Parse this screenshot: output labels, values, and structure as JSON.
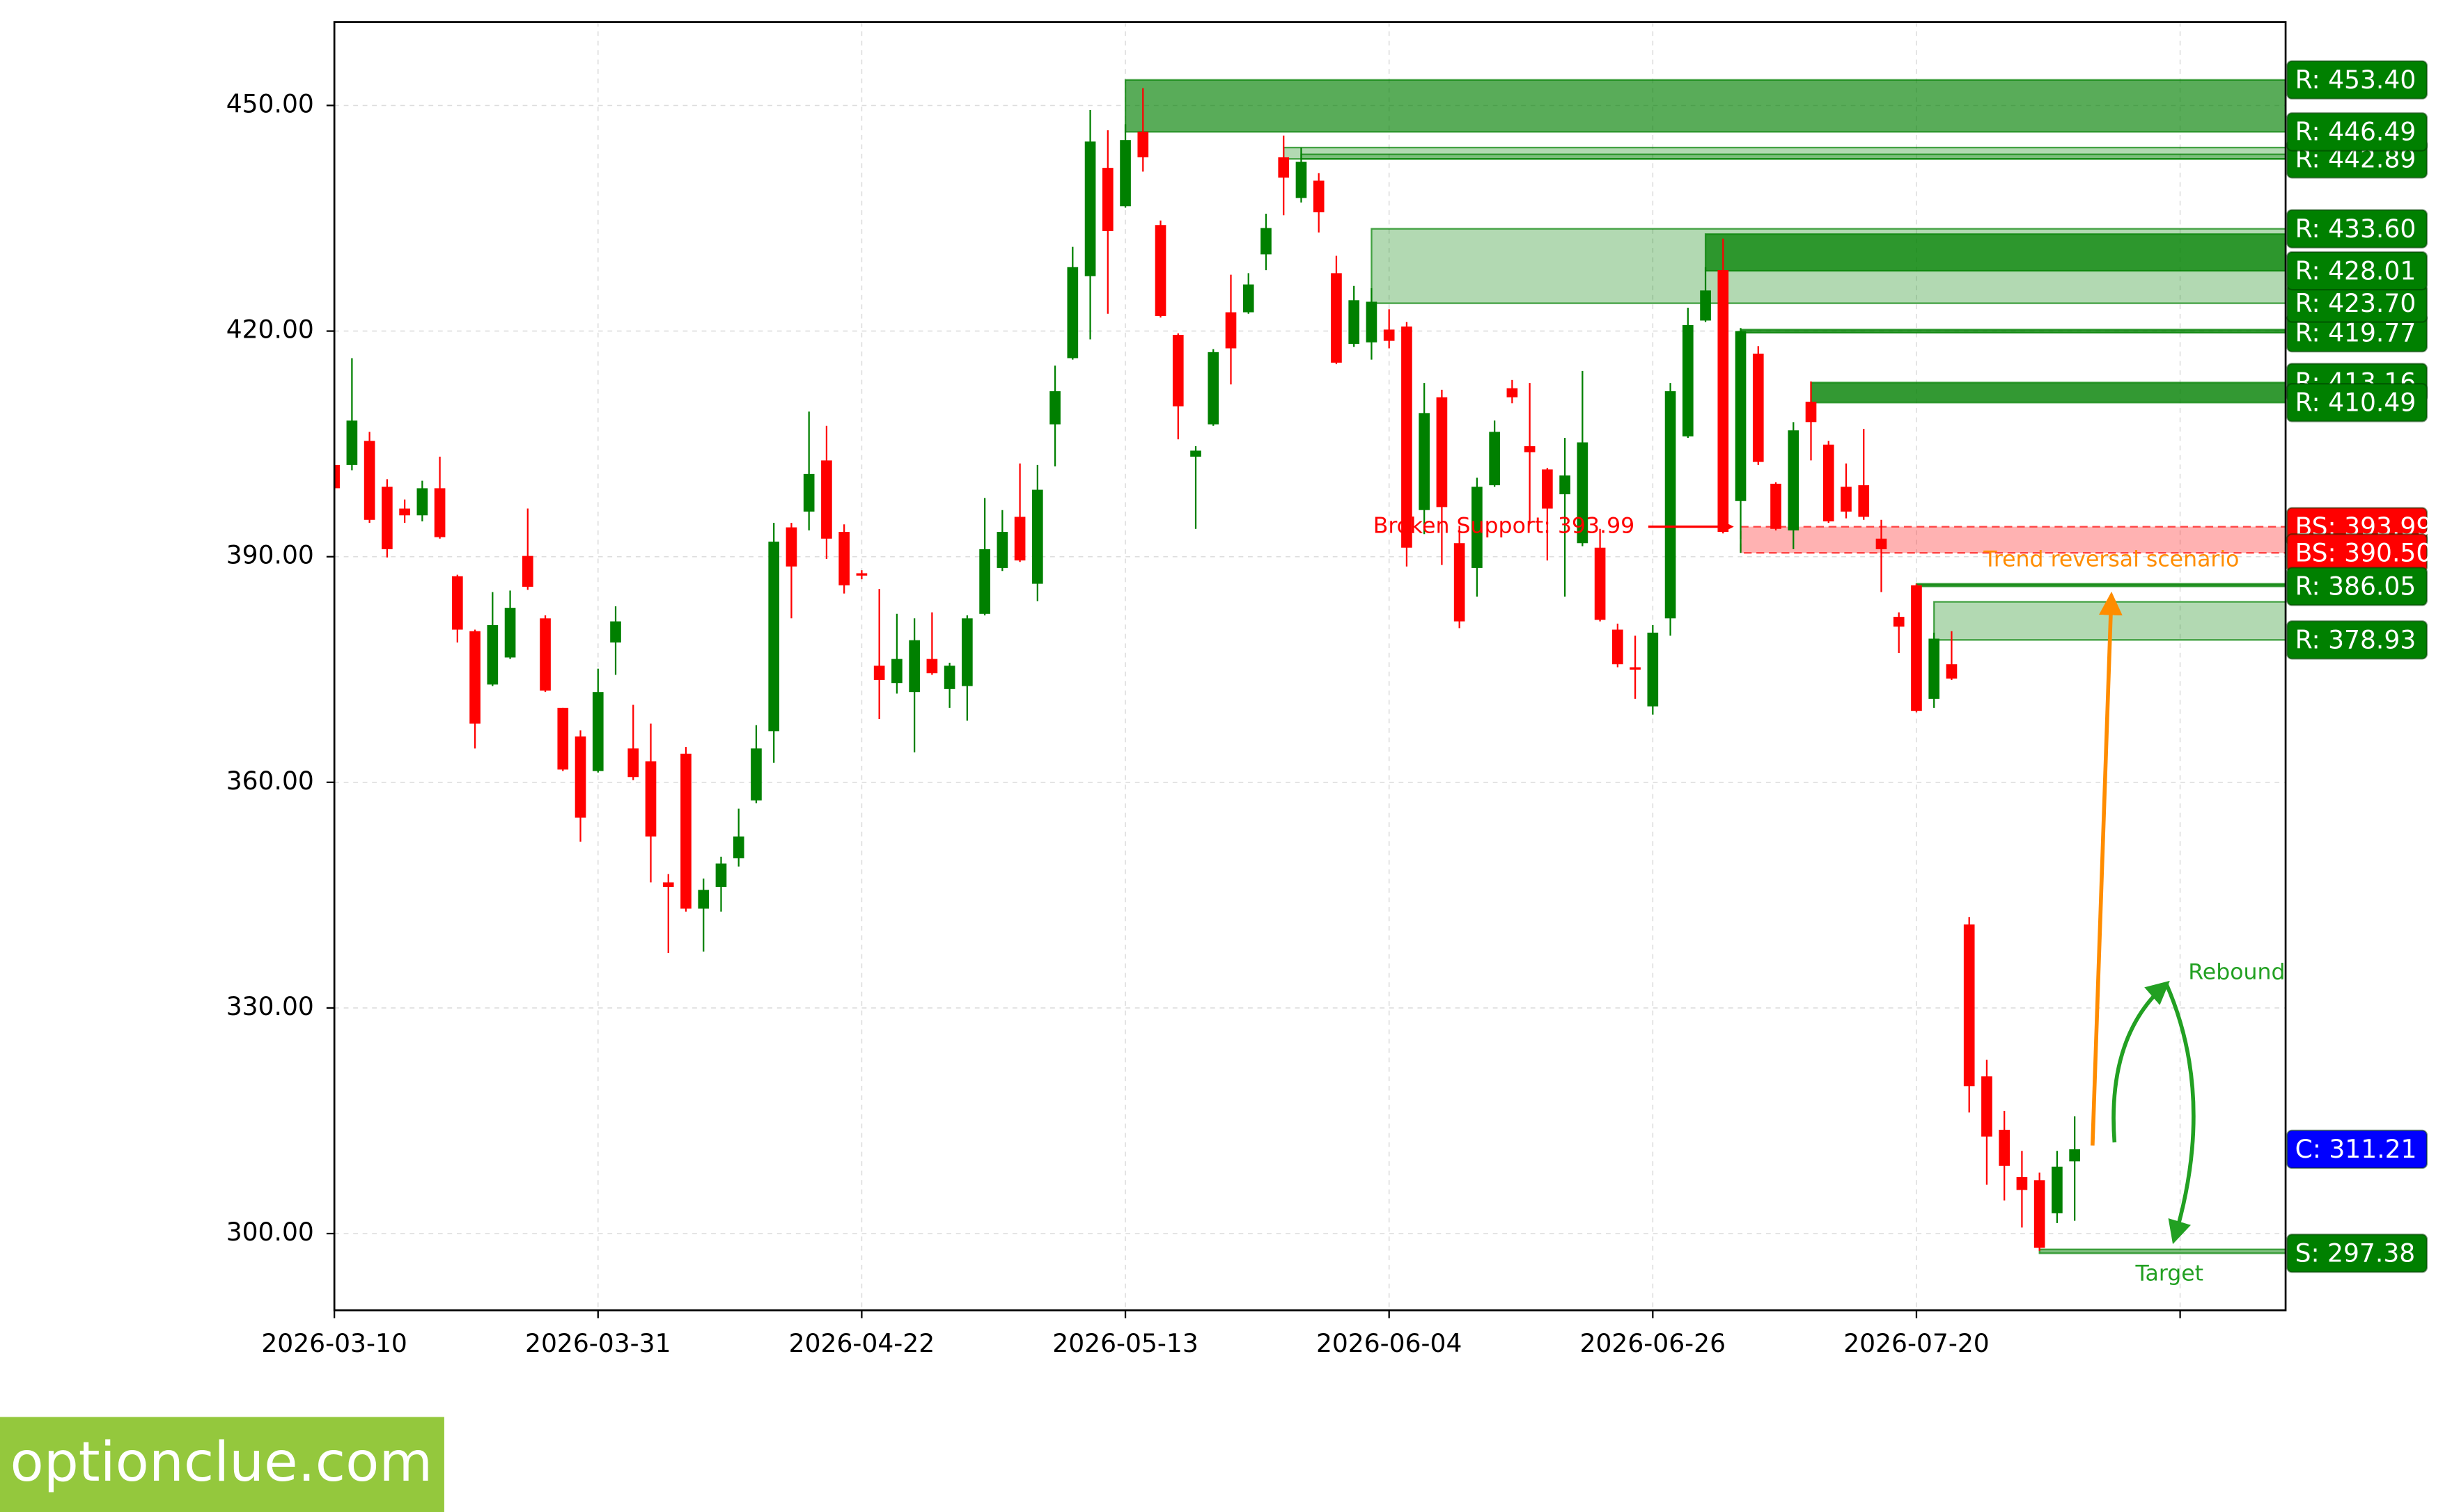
{
  "chart_data": {
    "type": "candlestick",
    "up_color": "#008000",
    "down_color": "#ff0000",
    "xlim": [
      0,
      111
    ],
    "xticks": [
      {
        "value": 0,
        "label": "2026-03-10"
      },
      {
        "value": 15,
        "label": "2026-03-31"
      },
      {
        "value": 30,
        "label": "2026-04-22"
      },
      {
        "value": 45,
        "label": "2026-05-13"
      },
      {
        "value": 60,
        "label": "2026-06-04"
      },
      {
        "value": 75,
        "label": "2026-06-26"
      },
      {
        "value": 90,
        "label": "2026-07-20"
      },
      {
        "value": 105,
        "label": null
      }
    ],
    "ylim": [
      289.8,
      461.1
    ],
    "yticks": [
      {
        "value": 300,
        "label": "300.00"
      },
      {
        "value": 330,
        "label": "330.00"
      },
      {
        "value": 360,
        "label": "360.00"
      },
      {
        "value": 390,
        "label": "390.00"
      },
      {
        "value": 420,
        "label": "420.00"
      },
      {
        "value": 450,
        "label": "450.00"
      }
    ],
    "grid": true,
    "open": [
      402.2,
      402.2,
      405.4,
      399.3,
      396.4,
      395.5,
      399.1,
      387.4,
      380.1,
      373.0,
      376.6,
      390.1,
      381.8,
      369.9,
      366.1,
      361.5,
      378.6,
      364.5,
      362.8,
      346.7,
      363.8,
      343.2,
      346.1,
      349.9,
      357.6,
      366.8,
      393.9,
      396.0,
      402.8,
      393.3,
      387.8,
      375.5,
      373.2,
      372.0,
      376.4,
      372.4,
      372.8,
      382.4,
      388.5,
      395.3,
      386.4,
      407.6,
      416.4,
      427.3,
      441.7,
      436.6,
      446.5,
      434.1,
      419.5,
      403.3,
      407.6,
      422.5,
      422.5,
      430.2,
      443.1,
      437.7,
      440.0,
      427.7,
      418.3,
      418.5,
      420.2,
      420.6,
      396.2,
      411.2,
      391.8,
      388.5,
      399.5,
      412.4,
      404.7,
      401.6,
      398.3,
      391.8,
      391.2,
      380.3,
      375.3,
      370.1,
      381.8,
      406.0,
      421.4,
      428.1,
      397.4,
      417.0,
      399.7,
      393.5,
      410.6,
      404.9,
      399.3,
      399.5,
      392.4,
      382.0,
      386.2,
      371.1,
      375.7,
      341.1,
      320.9,
      313.8,
      307.5,
      307.1,
      302.7,
      309.6
    ],
    "high": [
      403.0,
      416.4,
      406.6,
      400.3,
      397.6,
      400.1,
      403.3,
      387.6,
      380.3,
      385.3,
      385.5,
      396.4,
      382.2,
      369.9,
      366.9,
      375.1,
      383.4,
      370.3,
      367.8,
      347.8,
      364.7,
      347.2,
      350.1,
      356.5,
      367.6,
      394.5,
      394.5,
      409.3,
      407.4,
      394.3,
      388.2,
      385.7,
      382.4,
      381.8,
      382.6,
      375.9,
      382.2,
      397.8,
      396.2,
      402.4,
      402.2,
      415.4,
      431.2,
      449.4,
      446.7,
      447.5,
      452.3,
      434.7,
      419.7,
      404.7,
      417.6,
      427.5,
      427.7,
      435.6,
      446.0,
      444.4,
      441.0,
      430.0,
      426.0,
      425.7,
      422.9,
      421.2,
      413.1,
      412.2,
      394.1,
      400.5,
      408.1,
      413.5,
      413.1,
      401.8,
      405.8,
      414.7,
      393.7,
      381.1,
      379.5,
      380.9,
      413.1,
      423.1,
      428.5,
      432.3,
      420.4,
      418.0,
      399.9,
      407.9,
      413.3,
      405.4,
      402.4,
      407.0,
      394.9,
      382.6,
      386.4,
      379.9,
      380.1,
      342.1,
      323.1,
      316.3,
      311.0,
      308.1,
      311.0,
      315.6
    ],
    "low": [
      399.1,
      401.5,
      394.5,
      389.9,
      394.5,
      394.7,
      392.4,
      378.6,
      364.5,
      372.8,
      376.4,
      385.6,
      372.0,
      361.5,
      352.1,
      361.3,
      374.3,
      360.3,
      346.7,
      337.3,
      342.8,
      337.5,
      342.8,
      348.8,
      357.2,
      362.6,
      381.8,
      393.5,
      389.7,
      385.1,
      387.0,
      368.4,
      371.8,
      364.0,
      374.3,
      369.9,
      368.2,
      382.2,
      388.1,
      389.3,
      384.1,
      402.0,
      416.2,
      418.9,
      422.3,
      436.4,
      441.2,
      421.8,
      405.6,
      393.7,
      407.4,
      412.9,
      422.3,
      428.1,
      435.4,
      437.1,
      433.1,
      415.6,
      417.9,
      416.2,
      417.7,
      388.7,
      393.0,
      388.9,
      380.5,
      384.7,
      399.3,
      410.4,
      394.5,
      389.5,
      384.7,
      391.4,
      381.4,
      375.3,
      371.1,
      369.0,
      379.5,
      405.8,
      421.2,
      393.1,
      390.5,
      402.2,
      393.5,
      391.0,
      402.8,
      394.5,
      395.1,
      394.9,
      385.3,
      377.2,
      369.3,
      369.9,
      373.6,
      316.1,
      306.5,
      304.4,
      300.8,
      297.7,
      301.4,
      301.7
    ],
    "close": [
      399.1,
      408.1,
      394.9,
      391.0,
      395.5,
      399.1,
      392.6,
      380.3,
      367.8,
      380.9,
      383.2,
      386.0,
      372.2,
      361.7,
      355.3,
      372.0,
      381.4,
      360.7,
      352.8,
      346.1,
      343.2,
      345.7,
      349.2,
      352.8,
      364.5,
      392.0,
      388.7,
      401.0,
      392.4,
      386.2,
      387.6,
      373.6,
      376.4,
      378.9,
      374.5,
      375.5,
      381.8,
      391.0,
      393.3,
      389.5,
      398.9,
      412.0,
      428.5,
      445.2,
      433.3,
      445.4,
      443.1,
      422.0,
      410.0,
      404.1,
      417.2,
      417.7,
      426.2,
      433.7,
      440.4,
      442.5,
      435.8,
      415.8,
      424.1,
      423.9,
      418.7,
      391.2,
      409.1,
      396.6,
      381.4,
      399.3,
      406.6,
      411.2,
      403.9,
      396.4,
      400.8,
      405.2,
      381.6,
      375.7,
      375.1,
      379.9,
      412.0,
      420.8,
      425.4,
      393.3,
      420.0,
      402.6,
      393.7,
      406.8,
      407.9,
      394.7,
      396.0,
      395.3,
      391.0,
      380.7,
      369.5,
      379.1,
      373.8,
      319.6,
      312.9,
      309.0,
      305.8,
      298.1,
      308.9,
      311.21
    ],
    "zones": [
      {
        "start": 45,
        "top": 453.4,
        "bottom": 446.49,
        "color": "#008000",
        "opacity": 0.65
      },
      {
        "start": 54,
        "top": 444.4,
        "bottom": 442.89,
        "color": "#008000",
        "opacity": 0.3
      },
      {
        "start": 55,
        "top": 443.5,
        "bottom": 442.89,
        "color": "#008000",
        "opacity": 0.3
      },
      {
        "start": 59,
        "top": 433.6,
        "bottom": 423.7,
        "color": "#008000",
        "opacity": 0.3
      },
      {
        "start": 78,
        "top": 432.9,
        "bottom": 428.01,
        "color": "#008000",
        "opacity": 0.75
      },
      {
        "start": 80,
        "top": 420.2,
        "bottom": 419.77,
        "color": "#008000",
        "opacity": 0.8
      },
      {
        "start": 84,
        "top": 413.16,
        "bottom": 410.49,
        "color": "#008000",
        "opacity": 0.8
      },
      {
        "start": 80,
        "top": 393.99,
        "bottom": 390.5,
        "color": "#ff0000",
        "opacity": 0.3
      },
      {
        "start": 90,
        "top": 386.4,
        "bottom": 386.05,
        "color": "#008000",
        "opacity": 0.8
      },
      {
        "start": 91,
        "top": 384.0,
        "bottom": 378.93,
        "color": "#008000",
        "opacity": 0.3
      },
      {
        "start": 97,
        "top": 297.9,
        "bottom": 297.38,
        "color": "#008000",
        "opacity": 0.5
      }
    ],
    "levels": [
      {
        "label": "R: 442.89",
        "value": 442.89,
        "color": "#008000"
      },
      {
        "label": "R: 453.40",
        "value": 453.4,
        "color": "#008000"
      },
      {
        "label": "R: 446.49",
        "value": 446.49,
        "color": "#008000"
      },
      {
        "label": "R: 433.60",
        "value": 433.6,
        "color": "#008000"
      },
      {
        "label": "R: 419.77",
        "value": 419.77,
        "color": "#008000"
      },
      {
        "label": "R: 423.70",
        "value": 423.7,
        "color": "#008000"
      },
      {
        "label": "R: 428.01",
        "value": 428.01,
        "color": "#008000"
      },
      {
        "label": "R: 413.16",
        "value": 413.16,
        "color": "#008000"
      },
      {
        "label": "R: 410.49",
        "value": 410.49,
        "color": "#008000"
      },
      {
        "label": "BS: 393.99",
        "value": 393.99,
        "color": "#ff0000"
      },
      {
        "label": "BS: 390.50",
        "value": 390.5,
        "color": "#ff0000"
      },
      {
        "label": "R: 386.05",
        "value": 386.05,
        "color": "#008000"
      },
      {
        "label": "R: 378.93",
        "value": 378.93,
        "color": "#008000"
      },
      {
        "label": "C: 311.21",
        "value": 311.21,
        "color": "#0000ff"
      },
      {
        "label": "S: 297.38",
        "value": 297.38,
        "color": "#008000"
      }
    ],
    "annotations": [
      {
        "text": "Broken Support: 393.99",
        "value": 393.99,
        "color": "#ff0000"
      },
      {
        "text": "Trend reversal scenario",
        "color": "#ff8c00"
      },
      {
        "text": "Rebound",
        "color": "#22a022"
      },
      {
        "text": "Target",
        "color": "#22a022"
      }
    ]
  },
  "watermark": "optionclue.com"
}
